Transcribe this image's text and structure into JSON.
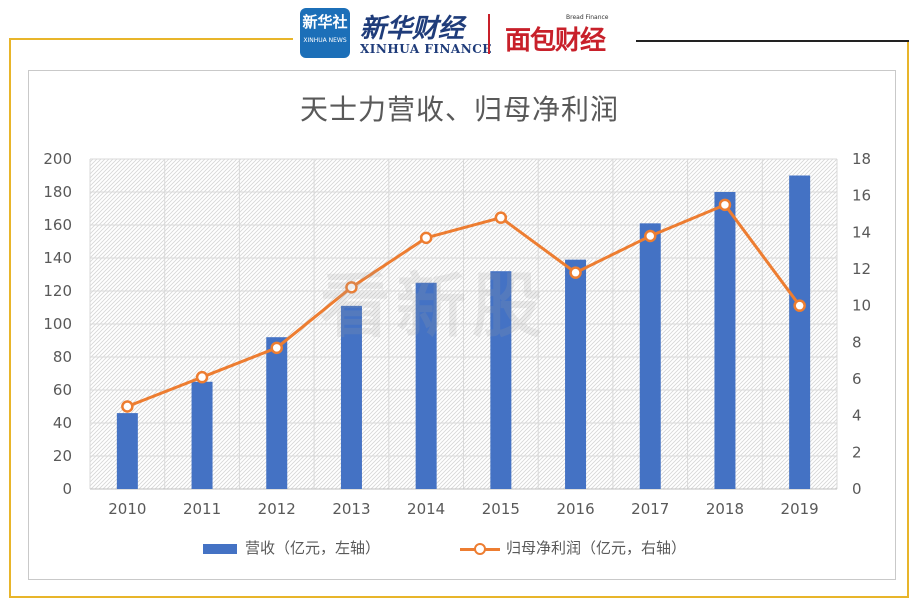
{
  "header": {
    "xinhua_logo_text": "新华社",
    "xinhua_logo_sub": "XINHUA NEWS",
    "brand_cn": "新华财经",
    "brand_en": "XINHUA FINANCE",
    "bread_tag": "Bread Finance",
    "bread_cn": "面包财经"
  },
  "watermark": "看新股",
  "colors": {
    "bar": "#4472c4",
    "line": "#ed7d31",
    "frame": "#e8b52a"
  },
  "chart_data": {
    "type": "bar",
    "title": "天士力营收、归母净利润",
    "categories": [
      "2010",
      "2011",
      "2012",
      "2013",
      "2014",
      "2015",
      "2016",
      "2017",
      "2018",
      "2019"
    ],
    "series": [
      {
        "name": "营收（亿元，左轴）",
        "type": "bar",
        "axis": "left",
        "values": [
          46,
          65,
          92,
          111,
          125,
          132,
          139,
          161,
          180,
          190
        ]
      },
      {
        "name": "归母净利润（亿元，右轴）",
        "type": "line",
        "axis": "right",
        "values": [
          4.5,
          6.1,
          7.7,
          11.0,
          13.7,
          14.8,
          11.8,
          13.8,
          15.5,
          10.0
        ]
      }
    ],
    "y_left": {
      "min": 0,
      "max": 200,
      "step": 20,
      "ticks": [
        "0",
        "20",
        "40",
        "60",
        "80",
        "100",
        "120",
        "140",
        "160",
        "180",
        "200"
      ]
    },
    "y_right": {
      "min": 0,
      "max": 18,
      "step": 2,
      "ticks": [
        "0",
        "2",
        "4",
        "6",
        "8",
        "10",
        "12",
        "14",
        "16",
        "18"
      ]
    },
    "grid": true,
    "legend_position": "bottom"
  }
}
